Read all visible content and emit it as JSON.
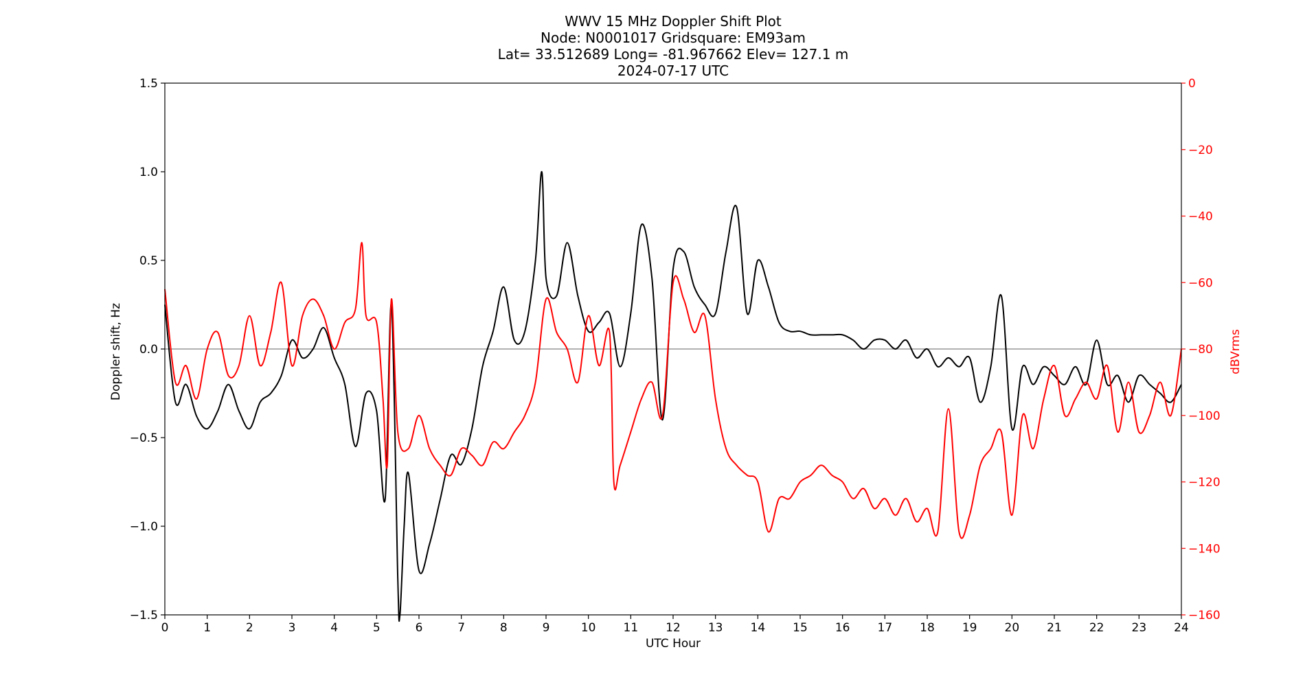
{
  "chart_data": {
    "type": "line",
    "title_lines": [
      "WWV 15 MHz Doppler Shift Plot",
      "Node:  N0001017     Gridsquare:  EM93am",
      "Lat= 33.512689    Long= -81.967662    Elev= 127.1 m",
      "2024-07-17  UTC"
    ],
    "xlabel": "UTC Hour",
    "ylabel_left": "Doppler shift, Hz",
    "ylabel_right": "dBVrms",
    "xlim": [
      0,
      24
    ],
    "ylim_left": [
      -1.5,
      1.5
    ],
    "ylim_right": [
      -160,
      0
    ],
    "x_ticks": [
      0,
      1,
      2,
      3,
      4,
      5,
      6,
      7,
      8,
      9,
      10,
      11,
      12,
      13,
      14,
      15,
      16,
      17,
      18,
      19,
      20,
      21,
      22,
      23,
      24
    ],
    "y_ticks_left": [
      "1.5",
      "1.0",
      "0.5",
      "0.0",
      "−0.5",
      "−1.0",
      "−1.5"
    ],
    "y_tick_values_left": [
      1.5,
      1.0,
      0.5,
      0.0,
      -0.5,
      -1.0,
      -1.5
    ],
    "y_ticks_right": [
      "0",
      "−20",
      "−40",
      "−60",
      "−80",
      "−100",
      "−120",
      "−140",
      "−160"
    ],
    "y_tick_values_right": [
      0,
      -20,
      -40,
      -60,
      -80,
      -100,
      -120,
      -140,
      -160
    ],
    "zero_line": 0.0,
    "colors": {
      "doppler": "#000000",
      "power": "#ff0000",
      "zero_line": "#808080"
    },
    "series": [
      {
        "axis": "left",
        "x": [
          0,
          0.25,
          0.5,
          0.75,
          1.0,
          1.25,
          1.5,
          1.75,
          2.0,
          2.25,
          2.5,
          2.75,
          3.0,
          3.25,
          3.5,
          3.75,
          4.0,
          4.25,
          4.5,
          4.75,
          5.0,
          5.2,
          5.35,
          5.5,
          5.55,
          5.65,
          5.75,
          6.0,
          6.25,
          6.5,
          6.75,
          7.0,
          7.25,
          7.5,
          7.75,
          8.0,
          8.25,
          8.5,
          8.75,
          8.9,
          9.0,
          9.25,
          9.5,
          9.75,
          10.0,
          10.25,
          10.5,
          10.75,
          11.0,
          11.25,
          11.5,
          11.75,
          12.0,
          12.25,
          12.5,
          12.75,
          13.0,
          13.25,
          13.5,
          13.75,
          14.0,
          14.25,
          14.5,
          14.75,
          15.0,
          15.25,
          15.5,
          15.75,
          16.0,
          16.25,
          16.5,
          16.75,
          17.0,
          17.25,
          17.5,
          17.75,
          18.0,
          18.25,
          18.5,
          18.75,
          19.0,
          19.25,
          19.5,
          19.75,
          20.0,
          20.25,
          20.5,
          20.75,
          21.0,
          21.25,
          21.5,
          21.75,
          22.0,
          22.25,
          22.5,
          22.75,
          23.0,
          23.25,
          23.5,
          23.75,
          24.0
        ],
        "values": [
          0.25,
          -0.3,
          -0.2,
          -0.38,
          -0.45,
          -0.35,
          -0.2,
          -0.35,
          -0.45,
          -0.3,
          -0.25,
          -0.15,
          0.05,
          -0.05,
          0.0,
          0.12,
          -0.05,
          -0.2,
          -0.55,
          -0.25,
          -0.35,
          -0.85,
          0.25,
          -1.3,
          -1.5,
          -1.0,
          -0.7,
          -1.25,
          -1.1,
          -0.85,
          -0.6,
          -0.65,
          -0.45,
          -0.1,
          0.1,
          0.35,
          0.05,
          0.1,
          0.5,
          1.0,
          0.4,
          0.3,
          0.6,
          0.3,
          0.1,
          0.15,
          0.2,
          -0.1,
          0.2,
          0.7,
          0.4,
          -0.4,
          0.45,
          0.55,
          0.35,
          0.25,
          0.2,
          0.55,
          0.8,
          0.2,
          0.5,
          0.35,
          0.15,
          0.1,
          0.1,
          0.08,
          0.08,
          0.08,
          0.08,
          0.05,
          0.0,
          0.05,
          0.05,
          0.0,
          0.05,
          -0.05,
          0.0,
          -0.1,
          -0.05,
          -0.1,
          -0.05,
          -0.3,
          -0.1,
          0.3,
          -0.45,
          -0.1,
          -0.2,
          -0.1,
          -0.15,
          -0.2,
          -0.1,
          -0.2,
          0.05,
          -0.2,
          -0.15,
          -0.3,
          -0.15,
          -0.2,
          -0.25,
          -0.3,
          -0.2
        ]
      },
      {
        "axis": "right",
        "x": [
          0,
          0.25,
          0.5,
          0.75,
          1.0,
          1.25,
          1.5,
          1.75,
          2.0,
          2.25,
          2.5,
          2.75,
          3.0,
          3.25,
          3.5,
          3.75,
          4.0,
          4.25,
          4.5,
          4.65,
          4.75,
          5.0,
          5.15,
          5.25,
          5.35,
          5.5,
          5.75,
          6.0,
          6.25,
          6.5,
          6.75,
          7.0,
          7.25,
          7.5,
          7.75,
          8.0,
          8.25,
          8.5,
          8.75,
          9.0,
          9.25,
          9.5,
          9.75,
          10.0,
          10.25,
          10.5,
          10.6,
          10.75,
          11.0,
          11.25,
          11.5,
          11.75,
          12.0,
          12.25,
          12.5,
          12.75,
          13.0,
          13.25,
          13.5,
          13.75,
          14.0,
          14.25,
          14.5,
          14.75,
          15.0,
          15.25,
          15.5,
          15.75,
          16.0,
          16.25,
          16.5,
          16.75,
          17.0,
          17.25,
          17.5,
          17.75,
          18.0,
          18.25,
          18.5,
          18.75,
          19.0,
          19.25,
          19.5,
          19.75,
          20.0,
          20.25,
          20.5,
          20.75,
          21.0,
          21.25,
          21.5,
          21.75,
          22.0,
          22.25,
          22.5,
          22.75,
          23.0,
          23.25,
          23.5,
          23.75,
          24.0
        ],
        "values": [
          -62,
          -90,
          -85,
          -95,
          -80,
          -75,
          -88,
          -85,
          -70,
          -85,
          -75,
          -60,
          -85,
          -70,
          -65,
          -70,
          -80,
          -72,
          -68,
          -48,
          -70,
          -72,
          -95,
          -115,
          -65,
          -105,
          -110,
          -100,
          -110,
          -115,
          -118,
          -110,
          -112,
          -115,
          -108,
          -110,
          -105,
          -100,
          -90,
          -65,
          -75,
          -80,
          -90,
          -70,
          -85,
          -75,
          -120,
          -115,
          -105,
          -95,
          -90,
          -100,
          -60,
          -65,
          -75,
          -70,
          -95,
          -110,
          -115,
          -118,
          -120,
          -135,
          -125,
          -125,
          -120,
          -118,
          -115,
          -118,
          -120,
          -125,
          -122,
          -128,
          -125,
          -130,
          -125,
          -132,
          -128,
          -135,
          -98,
          -135,
          -130,
          -115,
          -110,
          -105,
          -130,
          -100,
          -110,
          -95,
          -85,
          -100,
          -95,
          -90,
          -95,
          -85,
          -105,
          -90,
          -105,
          -100,
          -90,
          -100,
          -80
        ]
      }
    ]
  }
}
